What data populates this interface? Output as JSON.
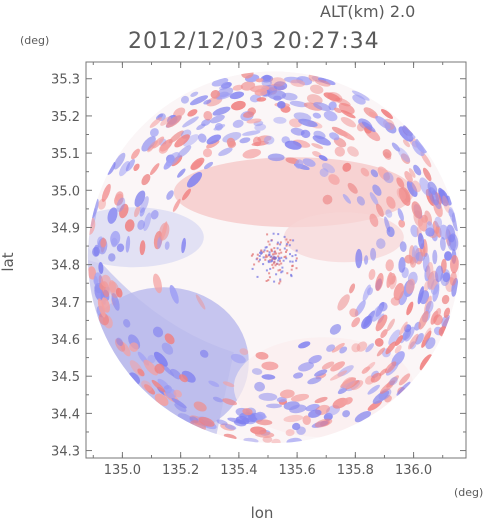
{
  "chart_data": {
    "type": "heatmap",
    "altitude_label": "ALT(km)  2.0",
    "title": "2012/12/03 20:27:34",
    "xlabel": "lon",
    "ylabel": "lat",
    "x_unit": "(deg)",
    "y_unit": "(deg)",
    "xlim": [
      134.875,
      136.18
    ],
    "ylim": [
      34.28,
      35.345
    ],
    "x_ticks": [
      "135.0",
      "135.2",
      "135.4",
      "135.6",
      "135.8",
      "136.0"
    ],
    "x_tick_values": [
      135.0,
      135.2,
      135.4,
      135.6,
      135.8,
      136.0
    ],
    "y_ticks": [
      "34.3",
      "34.4",
      "34.5",
      "34.6",
      "34.7",
      "34.8",
      "34.9",
      "35.0",
      "35.1",
      "35.2",
      "35.3"
    ],
    "y_tick_values": [
      34.3,
      34.4,
      34.5,
      34.6,
      34.7,
      34.8,
      34.9,
      35.0,
      35.1,
      35.2,
      35.3
    ],
    "radar_center": [
      135.52,
      34.82
    ],
    "radar_radius_deg_lat": 0.5,
    "colors": {
      "positive": "#f08080",
      "negative": "#8080f0",
      "zero": "#ffffff",
      "axis": "#777777"
    }
  }
}
